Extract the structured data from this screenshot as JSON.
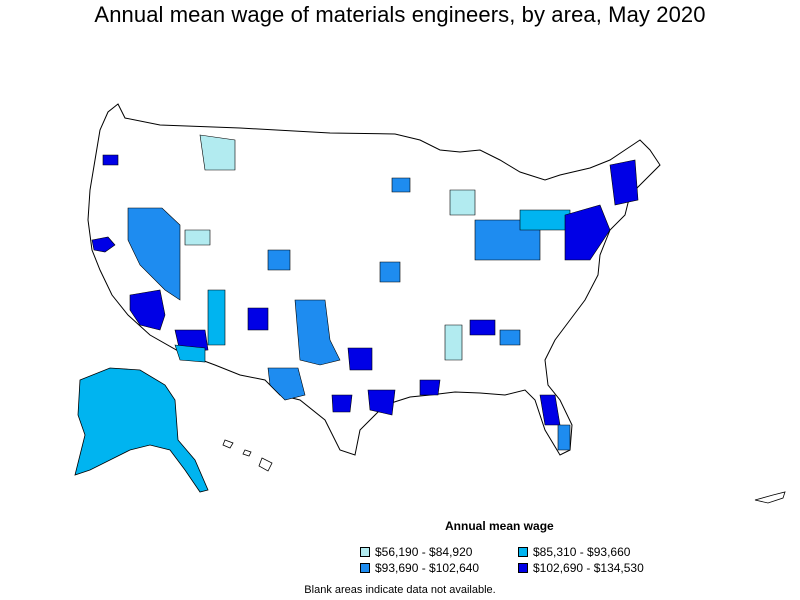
{
  "title": "Annual mean wage of materials engineers, by area, May 2020",
  "legend": {
    "title": "Annual mean wage",
    "items": [
      {
        "label": "$56,190 - $84,920",
        "color": "#b2ebf0"
      },
      {
        "label": "$85,310 - $93,660",
        "color": "#00b4f0"
      },
      {
        "label": "$93,690 - $102,640",
        "color": "#1e8cf0"
      },
      {
        "label": "$102,690 - $134,530",
        "color": "#0000e6"
      }
    ]
  },
  "note": "Blank areas indicate data not available.",
  "map": {
    "region": "United States",
    "palette": {
      "light": "#b2ebf0",
      "mid": "#00b4f0",
      "high": "#1e8cf0",
      "top": "#0000e6",
      "border": "#000000"
    }
  }
}
